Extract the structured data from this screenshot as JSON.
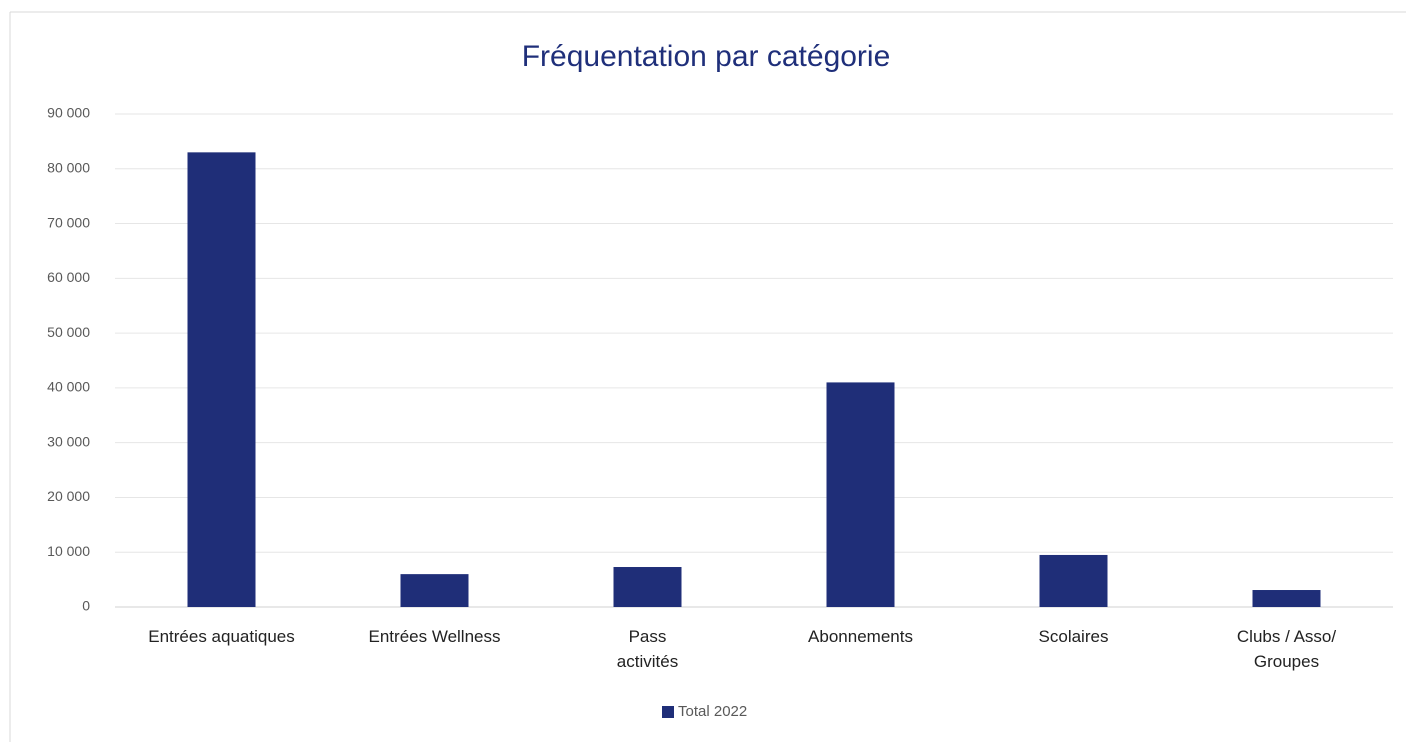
{
  "chart_data": {
    "type": "bar",
    "title": "Fréquentation par catégorie",
    "categories": [
      "Entrées aquatiques",
      "Entrées Wellness",
      "Pass\nactivités",
      "Abonnements",
      "Scolaires",
      "Clubs / Asso/\nGroupes"
    ],
    "series": [
      {
        "name": "Total 2022",
        "color": "#1f2e78",
        "values": [
          83000,
          6000,
          7300,
          41000,
          9500,
          3100
        ]
      }
    ],
    "ylim": [
      0,
      90000
    ],
    "yticks": [
      0,
      {
        "value": 10000,
        "label": "10 000"
      },
      {
        "value": 20000,
        "label": "20 000"
      },
      {
        "value": 30000,
        "label": "30 000"
      },
      {
        "value": 40000,
        "label": "40 000"
      },
      {
        "value": 50000,
        "label": "50 000"
      },
      {
        "value": 60000,
        "label": "60 000"
      },
      {
        "value": 70000,
        "label": "70 000"
      },
      {
        "value": 80000,
        "label": "80 000"
      },
      {
        "value": 90000,
        "label": "90 000"
      }
    ],
    "grid": true,
    "legend": "bottom"
  }
}
